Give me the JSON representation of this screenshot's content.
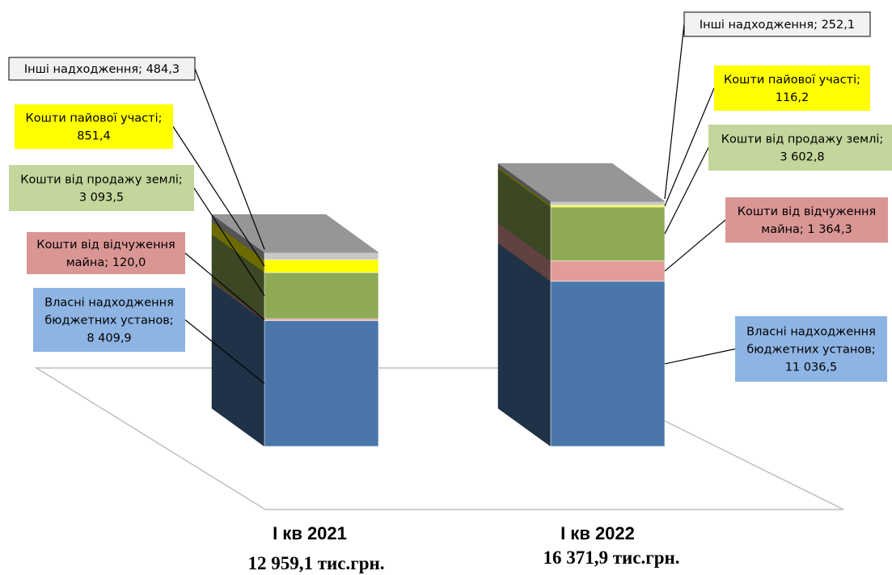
{
  "chart_data": {
    "type": "bar",
    "stacked": true,
    "three_d": true,
    "categories": [
      "І кв 2021",
      "І кв 2022"
    ],
    "totals": [
      "12 959,1 тис.грн.",
      "16 371,9 тис.грн."
    ],
    "series": [
      {
        "name": "Власні надходження бюджетних установ",
        "values": [
          8409.9,
          11036.5
        ],
        "labels": [
          "8 409,9",
          "11 036,5"
        ],
        "color": "#4a76aa",
        "label_bg": "#8eb4e3"
      },
      {
        "name": "Кошти від відчуження майна",
        "values": [
          120.0,
          1364.3
        ],
        "labels": [
          "120,0",
          "1 364,3"
        ],
        "color": "#e49c9a",
        "label_bg": "#d99694"
      },
      {
        "name": "Кошти від продажу землі",
        "values": [
          3093.5,
          3602.8
        ],
        "labels": [
          "3 093,5",
          "3 602,8"
        ],
        "color": "#8eaa55",
        "label_bg": "#c3d69b"
      },
      {
        "name": "Кошти пайової участі",
        "values": [
          851.4,
          116.2
        ],
        "labels": [
          "851,4",
          "116,2"
        ],
        "color": "#ffff00",
        "label_bg": "#ffff00"
      },
      {
        "name": "Інші надходження",
        "values": [
          484.3,
          252.1
        ],
        "labels": [
          "484,3",
          "252,1"
        ],
        "color": "#c8c8c8",
        "label_bg": "#f2f2f2"
      }
    ],
    "data_labels": [
      [
        [
          "Власні надходження",
          "бюджетних установ;",
          "8 409,9"
        ],
        [
          "Кошти від відчуження",
          "майна;  120,0"
        ],
        [
          "Кошти від продажу землі;",
          "3 093,5"
        ],
        [
          "Кошти пайової участі;",
          "851,4"
        ],
        [
          "Інші надходження;  484,3"
        ]
      ],
      [
        [
          "Власні надходження",
          "бюджетних установ;",
          "11 036,5"
        ],
        [
          "Кошти від відчуження",
          "майна; 1 364,3"
        ],
        [
          "Кошти від продажу землі;",
          "3 602,8"
        ],
        [
          "Кошти пайової участі;",
          "116,2"
        ],
        [
          "Інші надходження;  252,1"
        ]
      ]
    ],
    "legend": "none"
  }
}
